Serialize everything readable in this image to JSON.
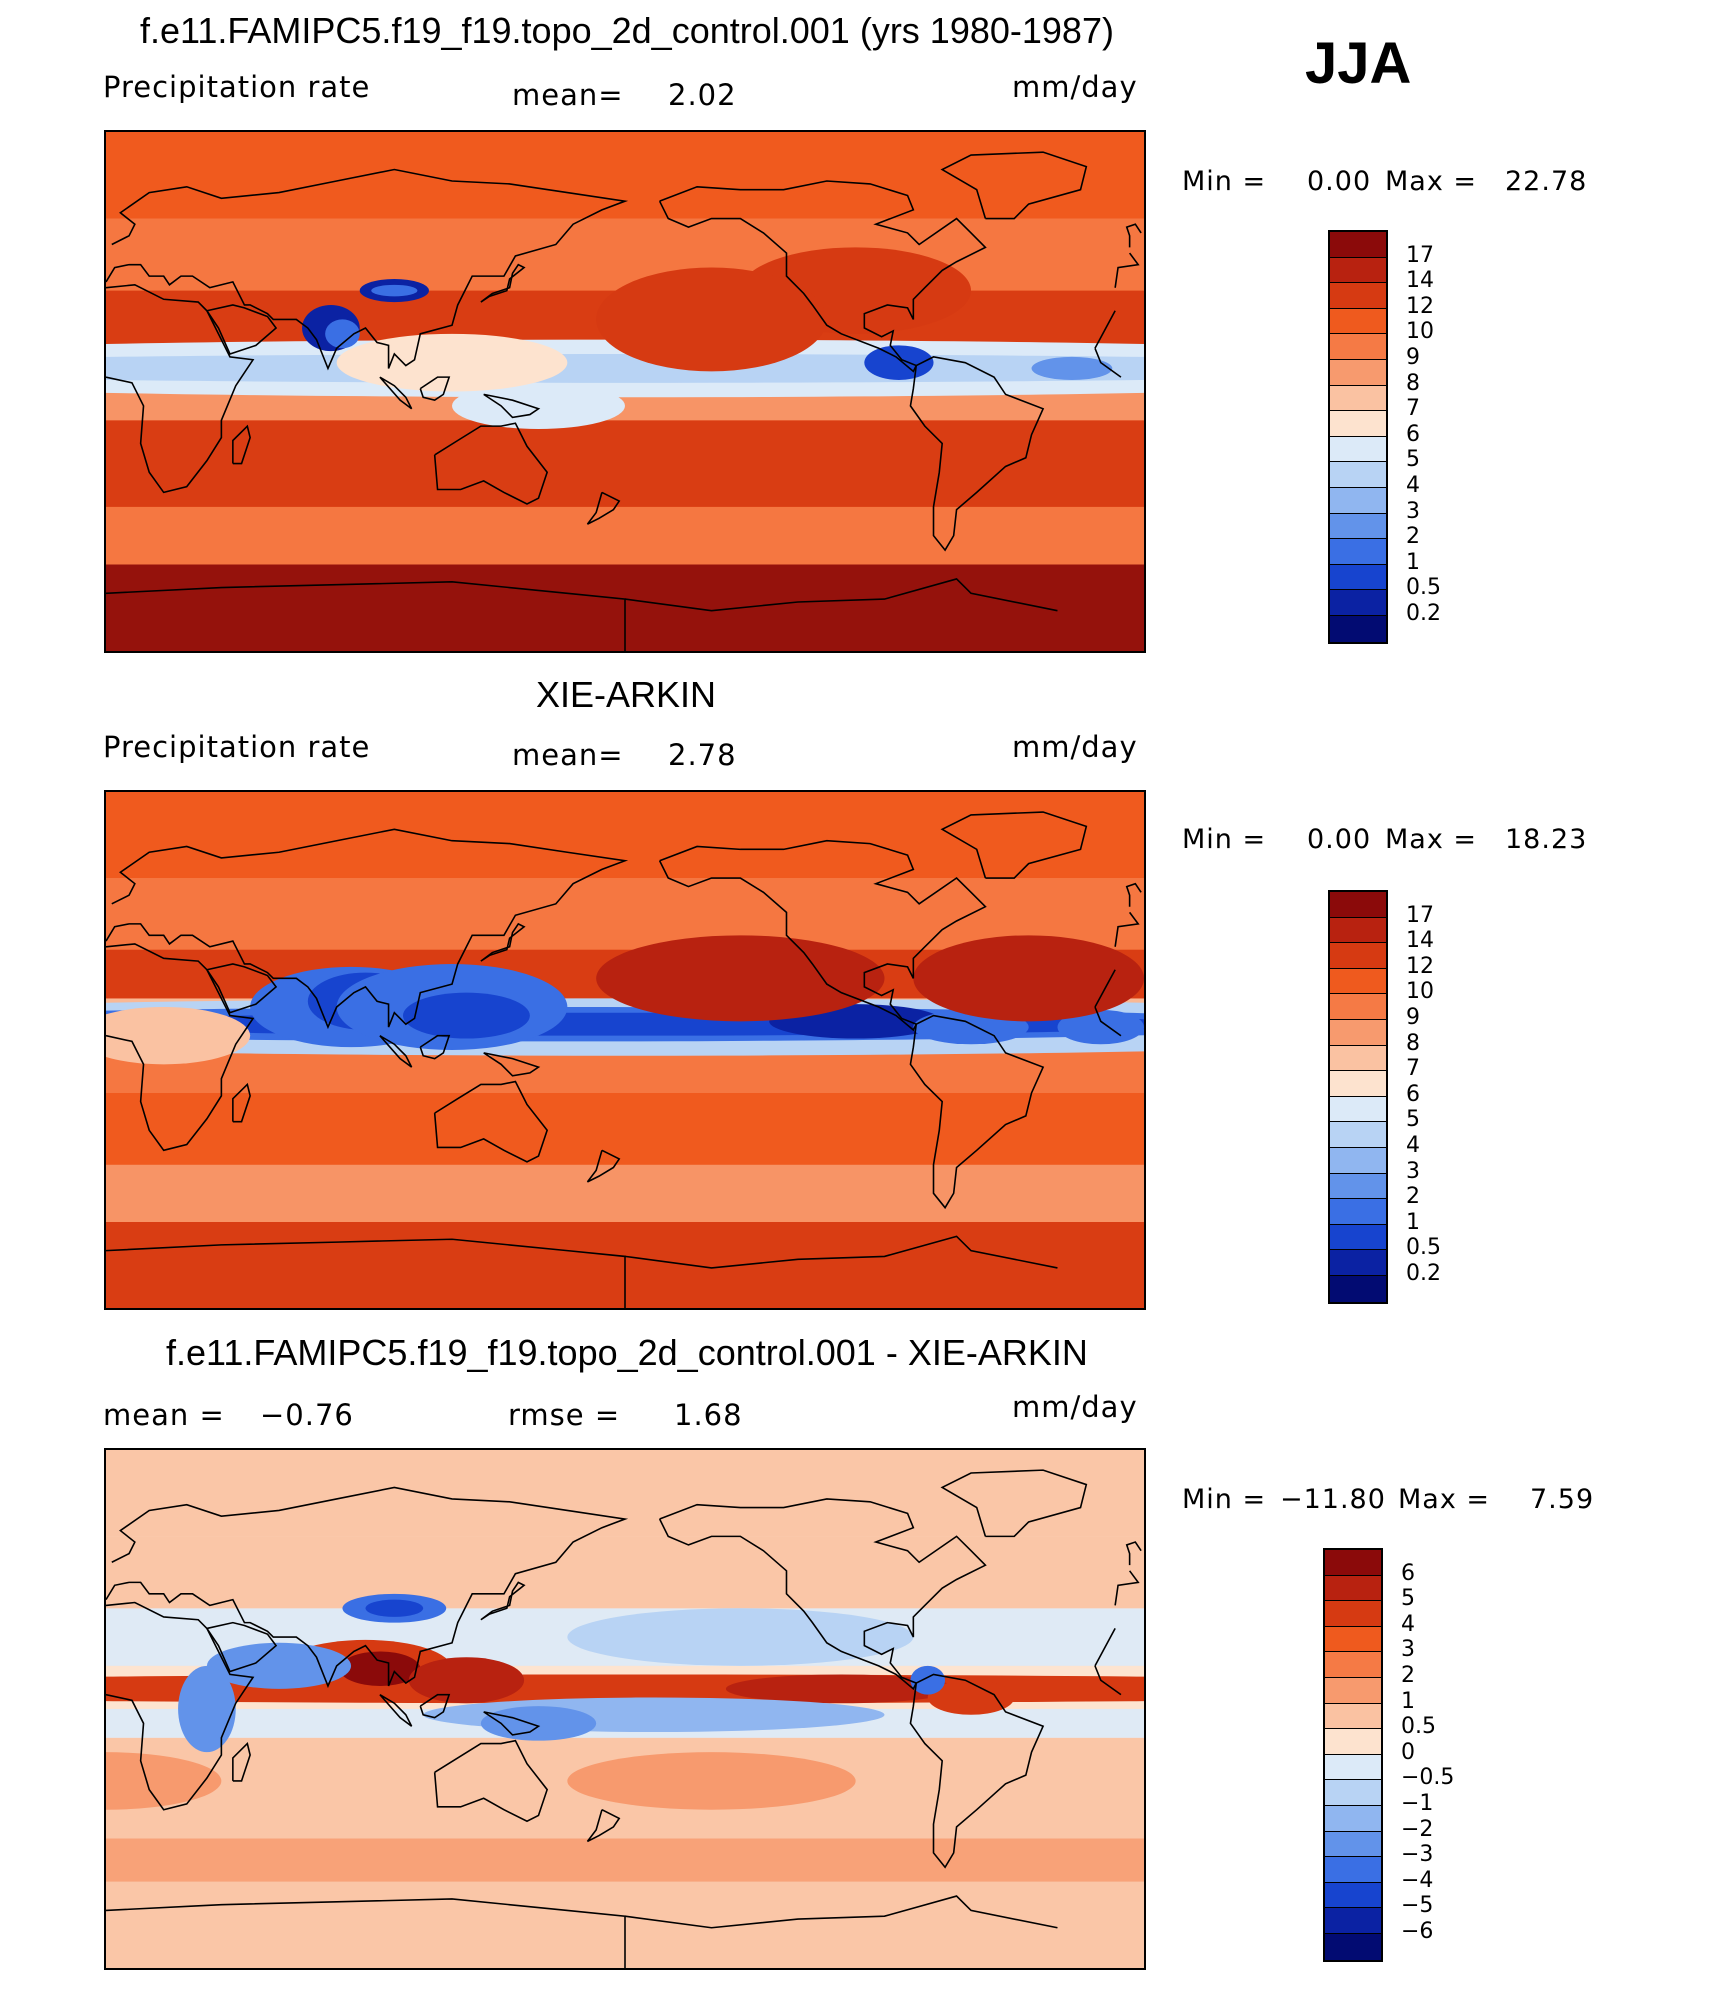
{
  "season": "JJA",
  "panels": [
    {
      "title": "f.e11.FAMIPC5.f19_f19.topo_2d_control.001 (yrs 1980-1987)",
      "left_label": "Precipitation  rate",
      "center_label": "mean=",
      "center_value": "2.02",
      "units": "mm/day",
      "min_label": "Min  =",
      "min_value": "0.00",
      "max_label": "Max  =",
      "max_value": "22.78"
    },
    {
      "title": "XIE-ARKIN",
      "left_label": "Precipitation  rate",
      "center_label": "mean=",
      "center_value": "2.78",
      "units": "mm/day",
      "min_label": "Min  =",
      "min_value": "0.00",
      "max_label": "Max  =",
      "max_value": "18.23"
    },
    {
      "title": "f.e11.FAMIPC5.f19_f19.topo_2d_control.001 - XIE-ARKIN",
      "left_label": "mean  =",
      "left_value": "−0.76",
      "center_label": "rmse  =",
      "center_value": "1.68",
      "units": "mm/day",
      "min_label": "Min  =",
      "min_value": "−11.80",
      "max_label": "Max  =",
      "max_value": "7.59"
    }
  ],
  "chart_data": [
    {
      "type": "heatmap",
      "title": "f.e11.FAMIPC5.f19_f19.topo_2d_control.001 (yrs 1980-1987)",
      "variable": "Precipitation  rate",
      "units": "mm/day",
      "mean": 2.02,
      "min": 0.0,
      "max": 22.78,
      "colorbar_levels": [
        "17",
        "14",
        "12",
        "10",
        "9",
        "8",
        "7",
        "6",
        "5",
        "4",
        "3",
        "2",
        "1",
        "0.5",
        "0.2"
      ],
      "colorbar_colors": [
        "#8b0a0a",
        "#b82210",
        "#d63a12",
        "#ef5a1e",
        "#f57a45",
        "#f79a6e",
        "#fac2a2",
        "#fde3cf",
        "#dceaf8",
        "#b8d3f4",
        "#90b6f0",
        "#6293ea",
        "#3a6fe4",
        "#1744cf",
        "#0b22a3",
        "#020b72"
      ]
    },
    {
      "type": "heatmap",
      "title": "XIE-ARKIN",
      "variable": "Precipitation  rate",
      "units": "mm/day",
      "mean": 2.78,
      "min": 0.0,
      "max": 18.23,
      "colorbar_levels": [
        "17",
        "14",
        "12",
        "10",
        "9",
        "8",
        "7",
        "6",
        "5",
        "4",
        "3",
        "2",
        "1",
        "0.5",
        "0.2"
      ],
      "colorbar_colors": [
        "#8b0a0a",
        "#b82210",
        "#d63a12",
        "#ef5a1e",
        "#f57a45",
        "#f79a6e",
        "#fac2a2",
        "#fde3cf",
        "#dceaf8",
        "#b8d3f4",
        "#90b6f0",
        "#6293ea",
        "#3a6fe4",
        "#1744cf",
        "#0b22a3",
        "#020b72"
      ]
    },
    {
      "type": "heatmap",
      "title": "f.e11.FAMIPC5.f19_f19.topo_2d_control.001 - XIE-ARKIN",
      "units": "mm/day",
      "mean": -0.76,
      "rmse": 1.68,
      "min": -11.8,
      "max": 7.59,
      "colorbar_levels": [
        "6",
        "5",
        "4",
        "3",
        "2",
        "1",
        "0.5",
        "0",
        "−0.5",
        "−1",
        "−2",
        "−3",
        "−4",
        "−5",
        "−6"
      ],
      "colorbar_colors": [
        "#8b0a0a",
        "#b82210",
        "#d63a12",
        "#ef5a1e",
        "#f57a45",
        "#f79a6e",
        "#fac2a2",
        "#fde3cf",
        "#dceaf8",
        "#b8d3f4",
        "#90b6f0",
        "#6293ea",
        "#3a6fe4",
        "#1744cf",
        "#0b22a3",
        "#020b72"
      ]
    }
  ]
}
